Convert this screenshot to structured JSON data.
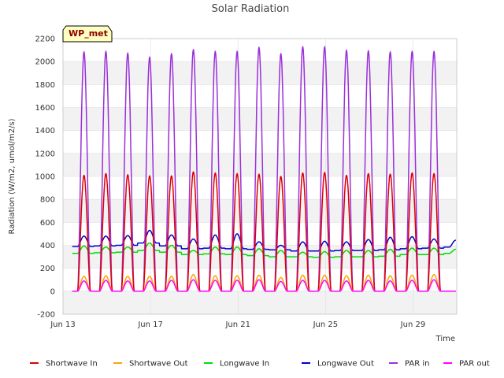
{
  "chart_data": {
    "type": "line",
    "title": "Solar Radiation",
    "site_label": "WP_met",
    "xlabel": "Time",
    "ylabel": "Radiation (W/m2, umol/m2/s)",
    "ylim": [
      -200,
      2200
    ],
    "yticks": [
      -200,
      0,
      200,
      400,
      600,
      800,
      1000,
      1200,
      1400,
      1600,
      1800,
      2000,
      2200
    ],
    "xlim": [
      "2023-06-13",
      "2023-07-01"
    ],
    "xticks": [
      {
        "label": "Jun 13",
        "date": "2023-06-13"
      },
      {
        "label": "Jun 17",
        "date": "2023-06-17"
      },
      {
        "label": "Jun 21",
        "date": "2023-06-21"
      },
      {
        "label": "Jun 25",
        "date": "2023-06-25"
      },
      {
        "label": "Jun 29",
        "date": "2023-06-29"
      }
    ],
    "grid": true,
    "legend_position": "bottom",
    "x": [
      "Jun 13",
      "Jun 14",
      "Jun 15",
      "Jun 16",
      "Jun 17",
      "Jun 18",
      "Jun 19",
      "Jun 20",
      "Jun 21",
      "Jun 22",
      "Jun 23",
      "Jun 24",
      "Jun 25",
      "Jun 26",
      "Jun 27",
      "Jun 28",
      "Jun 29",
      "Jun 30"
    ],
    "series": [
      {
        "name": "Shortwave In",
        "color": "#dd0000",
        "kind": "daily_peak",
        "values": [
          1010,
          1025,
          1015,
          1005,
          1005,
          1040,
          1030,
          1025,
          1020,
          1000,
          1030,
          1035,
          1010,
          1025,
          1020,
          1030,
          1025,
          0
        ]
      },
      {
        "name": "Shortwave Out",
        "color": "#ffa500",
        "kind": "daily_peak",
        "values": [
          130,
          135,
          130,
          130,
          130,
          145,
          135,
          135,
          140,
          120,
          140,
          140,
          135,
          140,
          135,
          140,
          145,
          0
        ]
      },
      {
        "name": "Longwave In",
        "color": "#00dd00",
        "kind": "continuous",
        "night_values": [
          330,
          335,
          340,
          355,
          340,
          320,
          325,
          320,
          310,
          300,
          300,
          295,
          300,
          300,
          305,
          320,
          320,
          330
        ],
        "day_values": [
          395,
          385,
          385,
          420,
          400,
          355,
          385,
          385,
          370,
          355,
          340,
          345,
          355,
          355,
          365,
          375,
          375,
          365
        ]
      },
      {
        "name": "Longwave Out",
        "color": "#0000cc",
        "kind": "continuous",
        "night_values": [
          390,
          395,
          400,
          420,
          395,
          370,
          375,
          370,
          365,
          360,
          350,
          350,
          355,
          355,
          360,
          370,
          375,
          385
        ],
        "day_values": [
          480,
          480,
          485,
          530,
          490,
          455,
          490,
          500,
          430,
          400,
          430,
          435,
          430,
          450,
          470,
          475,
          455,
          445
        ]
      },
      {
        "name": "PAR in",
        "color": "#9b30d9",
        "kind": "daily_peak",
        "values": [
          2085,
          2090,
          2075,
          2040,
          2070,
          2105,
          2090,
          2090,
          2125,
          2070,
          2130,
          2130,
          2100,
          2095,
          2085,
          2090,
          2090,
          0
        ]
      },
      {
        "name": "PAR out",
        "color": "#ff00ff",
        "kind": "daily_peak",
        "values": [
          90,
          95,
          90,
          90,
          95,
          100,
          95,
          95,
          100,
          85,
          95,
          95,
          90,
          95,
          90,
          95,
          100,
          0
        ]
      }
    ]
  }
}
